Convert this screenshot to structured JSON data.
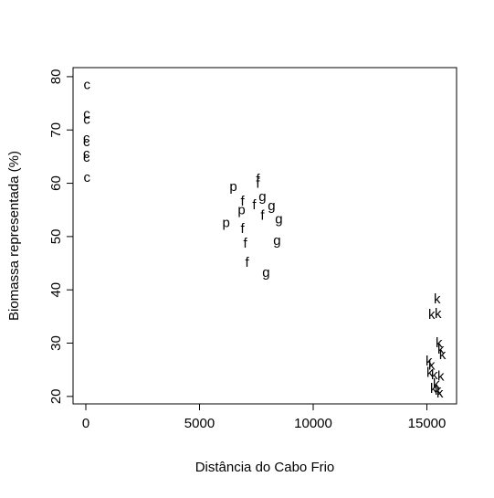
{
  "chart_data": {
    "type": "scatter",
    "xlabel": "Distância do Cabo Frio",
    "ylabel": "Biomassa representada (%)",
    "xlim": [
      -562,
      16305
    ],
    "ylim": [
      18.6,
      81.7
    ],
    "xticks": [
      0,
      5000,
      10000,
      15000
    ],
    "yticks": [
      20,
      30,
      40,
      50,
      60,
      70,
      80
    ],
    "series": [
      {
        "name": "c",
        "color": "#000000",
        "x": [
          50,
          40,
          40,
          30,
          30,
          30,
          30,
          50
        ],
        "values": [
          78.5,
          73,
          72,
          68.5,
          67.8,
          65.6,
          64.9,
          61.1
        ]
      },
      {
        "name": "p",
        "color": "#000000",
        "x": [
          6490,
          6850,
          6170
        ],
        "values": [
          59.4,
          55,
          52.6
        ]
      },
      {
        "name": "f",
        "color": "#000000",
        "x": [
          7570,
          7570,
          6890,
          7410,
          7770,
          6890,
          7010,
          7090
        ],
        "values": [
          60.8,
          60,
          56.7,
          56,
          54,
          51.5,
          48.8,
          45.2
        ]
      },
      {
        "name": "g",
        "color": "#000000",
        "x": [
          7770,
          8170,
          8490,
          8410,
          7930
        ],
        "values": [
          57.5,
          55.8,
          53.3,
          49.3,
          43.3
        ]
      },
      {
        "name": "k",
        "color": "#000000",
        "x": [
          15450,
          15210,
          15490,
          15530,
          15610,
          15690,
          15090,
          15130,
          15210,
          15330,
          15410,
          15490,
          15610,
          15570,
          15290
        ],
        "values": [
          38.3,
          35.4,
          35.6,
          30.1,
          28.9,
          27.9,
          26.7,
          24.5,
          25.9,
          24.1,
          22.4,
          21.2,
          23.8,
          20.7,
          21.5
        ]
      }
    ]
  }
}
